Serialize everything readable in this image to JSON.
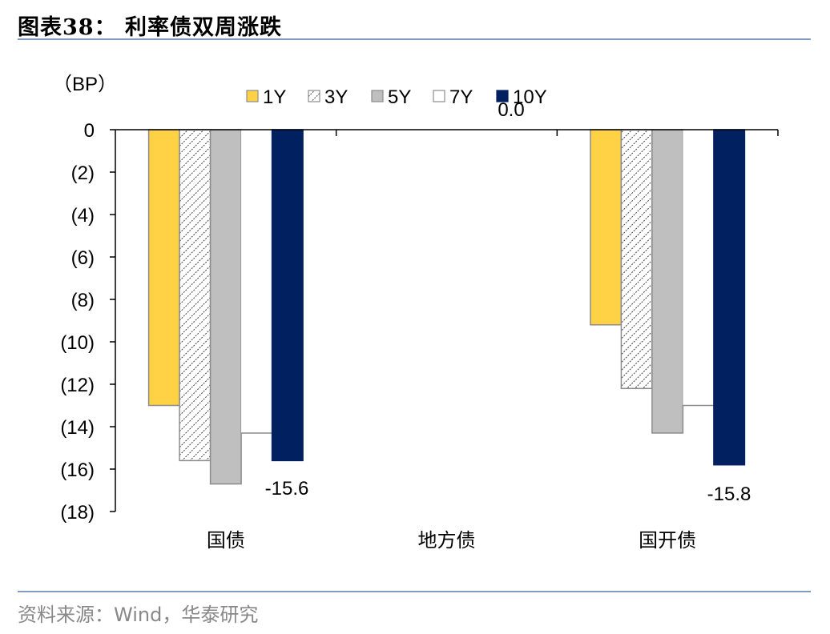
{
  "header": {
    "title": "图表38：  利率债双周涨跌"
  },
  "footer": {
    "source": "资料来源：Wind，华泰研究"
  },
  "colors": {
    "rule": "#7f9cc0",
    "1Y": "#ffd145",
    "3Y": "#ffffff",
    "5Y": "#bfbfbf",
    "7Y": "#ffffff",
    "10Y": "#002060",
    "border": "#8c8c8c"
  },
  "chart_data": {
    "type": "bar",
    "title": "利率债双周涨跌",
    "ylabel": "（BP）",
    "xlabel": "",
    "categories": [
      "国债",
      "地方债",
      "国开债"
    ],
    "series": [
      {
        "name": "1Y",
        "values": [
          -13.0,
          0.0,
          -9.2
        ]
      },
      {
        "name": "3Y",
        "values": [
          -15.6,
          0.0,
          -12.2
        ]
      },
      {
        "name": "5Y",
        "values": [
          -16.7,
          0.0,
          -14.3
        ]
      },
      {
        "name": "7Y",
        "values": [
          -14.3,
          0.0,
          -13.0
        ]
      },
      {
        "name": "10Y",
        "values": [
          -15.6,
          0.0,
          -15.8
        ]
      }
    ],
    "ylim": [
      -18,
      0
    ],
    "yticks": [
      0,
      -2,
      -4,
      -6,
      -8,
      -10,
      -12,
      -14,
      -16,
      -18
    ],
    "ytick_labels": [
      "0",
      "(2)",
      "(4)",
      "(6)",
      "(8)",
      "(10)",
      "(12)",
      "(14)",
      "(16)",
      "(18)"
    ],
    "data_labels": [
      {
        "series": "10Y",
        "category": "国债",
        "text": "-15.6"
      },
      {
        "series": "10Y",
        "category": "地方债",
        "text": "0.0"
      },
      {
        "series": "10Y",
        "category": "国开债",
        "text": "-15.8"
      }
    ],
    "legend": {
      "position": "top",
      "entries": [
        "1Y",
        "3Y",
        "5Y",
        "7Y",
        "10Y"
      ]
    },
    "grid": false
  }
}
